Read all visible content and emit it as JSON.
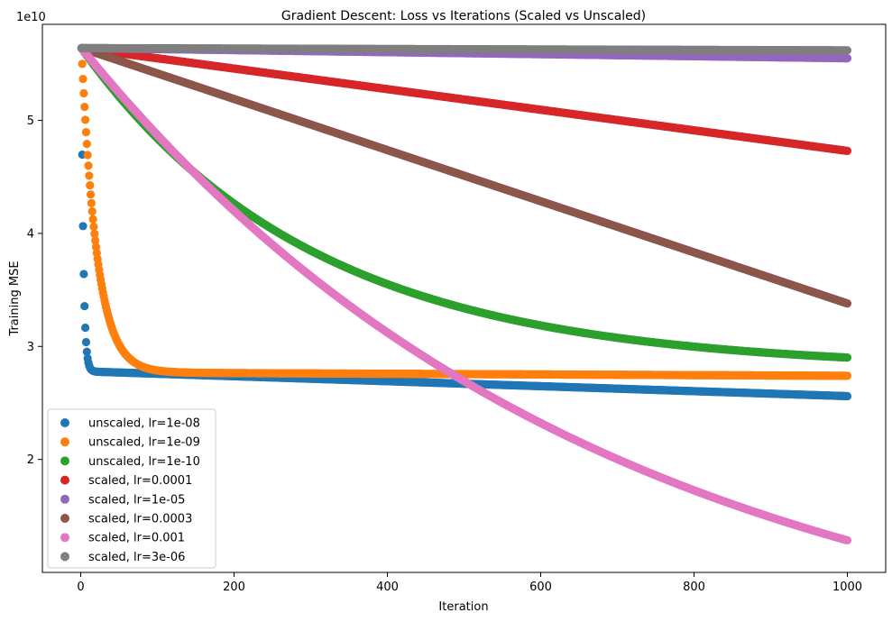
{
  "chart_data": {
    "type": "scatter",
    "title": "Gradient Descent: Loss vs Iterations (Scaled vs Unscaled)",
    "xlabel": "Iteration",
    "ylabel": "Training MSE",
    "y_offset_label": "1e10",
    "xlim": [
      -50,
      1050
    ],
    "ylim": [
      1.0,
      5.85
    ],
    "x_ticks": [
      0,
      200,
      400,
      600,
      800,
      1000
    ],
    "y_ticks": [
      2,
      3,
      4,
      5
    ],
    "grid": false,
    "legend_position": "lower left",
    "series": [
      {
        "name": "unscaled, lr=1e-08",
        "color": "#1f77b4",
        "kind": "fast",
        "params": {
          "start": 5.64,
          "asym": 2.78,
          "tau": 2.5,
          "drift_end": 2.56
        }
      },
      {
        "name": "unscaled, lr=1e-09",
        "color": "#ff7f0e",
        "kind": "fast",
        "params": {
          "start": 5.64,
          "asym": 2.77,
          "tau": 20,
          "drift_end": 2.74
        }
      },
      {
        "name": "unscaled, lr=1e-10",
        "color": "#2ca02c",
        "kind": "exp",
        "params": {
          "start": 5.64,
          "asym": 2.8,
          "tau": 300
        }
      },
      {
        "name": "scaled, lr=0.0001",
        "color": "#d62728",
        "kind": "linear",
        "params": {
          "start": 5.64,
          "end": 4.73
        }
      },
      {
        "name": "scaled, lr=1e-05",
        "color": "#9467bd",
        "kind": "linear",
        "params": {
          "start": 5.64,
          "end": 5.55
        }
      },
      {
        "name": "scaled, lr=0.0003",
        "color": "#8c564b",
        "kind": "linear",
        "params": {
          "start": 5.64,
          "end": 3.38
        }
      },
      {
        "name": "scaled, lr=0.001",
        "color": "#e377c2",
        "kind": "exp",
        "params": {
          "start": 5.64,
          "asym": 0.0,
          "tau": 675
        }
      },
      {
        "name": "scaled, lr=3e-06",
        "color": "#7f7f7f",
        "kind": "linear",
        "params": {
          "start": 5.64,
          "end": 5.62
        }
      }
    ],
    "x_range": [
      1,
      1000
    ]
  }
}
